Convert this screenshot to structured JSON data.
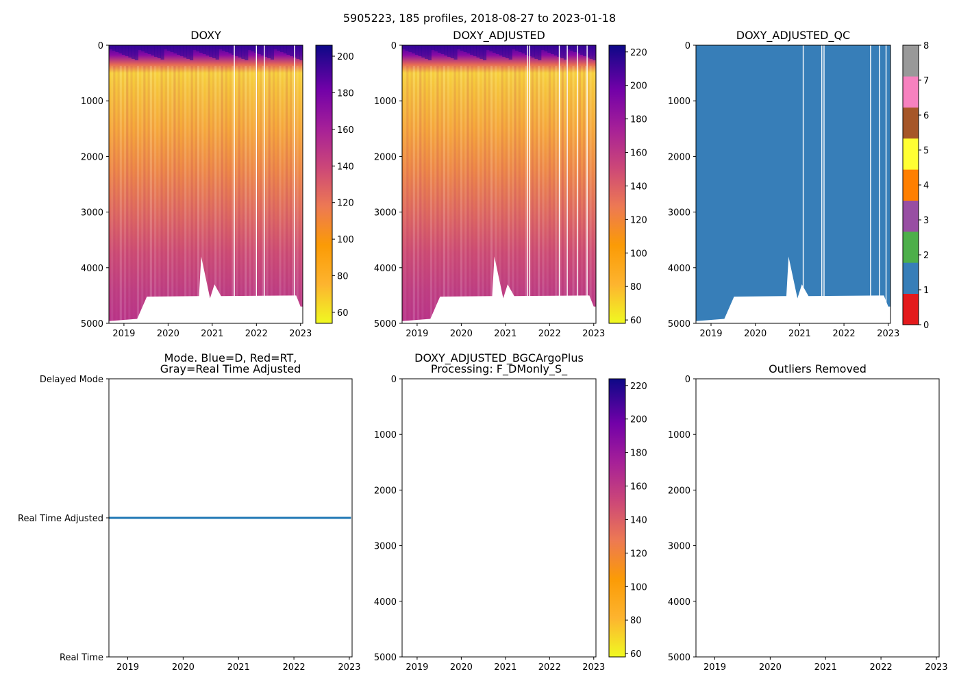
{
  "suptitle": "5905223, 185 profiles, 2018-08-27 to 2023-01-18",
  "chart_data": [
    {
      "type": "heatmap",
      "title": "DOXY",
      "x_range": [
        2018.66,
        2023.05
      ],
      "y_range": [
        0,
        5000
      ],
      "y_inverted": true,
      "xticks": [
        "2019",
        "2020",
        "2021",
        "2022",
        "2023"
      ],
      "yticks": [
        "0",
        "1000",
        "2000",
        "3000",
        "4000",
        "5000"
      ],
      "colormap": "plasma_r",
      "colorbar": {
        "range": [
          54,
          206
        ],
        "ticks": [
          "60",
          "80",
          "100",
          "120",
          "140",
          "160",
          "180",
          "200"
        ]
      },
      "profile_gaps": [
        2021.5,
        2022.0,
        2022.18,
        2022.86
      ],
      "bottom_depth_profile": [
        [
          2018.66,
          4960
        ],
        [
          2019.3,
          4920
        ],
        [
          2019.52,
          4520
        ],
        [
          2020.7,
          4510
        ],
        [
          2020.75,
          3800
        ],
        [
          2020.95,
          4550
        ],
        [
          2021.05,
          4300
        ],
        [
          2021.2,
          4510
        ],
        [
          2022.9,
          4500
        ],
        [
          2023.0,
          4700
        ]
      ]
    },
    {
      "type": "heatmap",
      "title": "DOXY_ADJUSTED",
      "x_range": [
        2018.66,
        2023.05
      ],
      "y_range": [
        0,
        5000
      ],
      "y_inverted": true,
      "xticks": [
        "2019",
        "2020",
        "2021",
        "2022",
        "2023"
      ],
      "yticks": [
        "0",
        "1000",
        "2000",
        "3000",
        "4000",
        "5000"
      ],
      "colormap": "plasma_r",
      "colorbar": {
        "range": [
          58,
          224
        ],
        "ticks": [
          "60",
          "80",
          "100",
          "120",
          "140",
          "160",
          "180",
          "200",
          "220"
        ]
      },
      "profile_gaps": [
        2021.5,
        2021.55,
        2022.22,
        2022.4,
        2022.63,
        2022.85
      ],
      "bottom_depth_profile": [
        [
          2018.66,
          4960
        ],
        [
          2019.3,
          4920
        ],
        [
          2019.52,
          4520
        ],
        [
          2020.7,
          4510
        ],
        [
          2020.75,
          3800
        ],
        [
          2020.95,
          4550
        ],
        [
          2021.05,
          4300
        ],
        [
          2021.2,
          4510
        ],
        [
          2022.9,
          4500
        ],
        [
          2023.0,
          4700
        ]
      ]
    },
    {
      "type": "heatmap",
      "title": "DOXY_ADJUSTED_QC",
      "x_range": [
        2018.66,
        2023.05
      ],
      "y_range": [
        0,
        5000
      ],
      "y_inverted": true,
      "xticks": [
        "2019",
        "2020",
        "2021",
        "2022",
        "2023"
      ],
      "yticks": [
        "0",
        "1000",
        "2000",
        "3000",
        "4000",
        "5000"
      ],
      "qc_value": 1,
      "qc_color": "#377eb8",
      "colorbar": {
        "range": [
          0,
          8
        ],
        "ticks": [
          "0",
          "1",
          "2",
          "3",
          "4",
          "5",
          "6",
          "7",
          "8"
        ],
        "colors": [
          "#e41a1c",
          "#377eb8",
          "#4daf4a",
          "#984ea3",
          "#ff7f00",
          "#ffff33",
          "#a65628",
          "#f781bf",
          "#999999"
        ]
      },
      "profile_gaps": [
        2021.08,
        2021.5,
        2021.55,
        2022.6,
        2022.8,
        2022.95
      ],
      "bottom_depth_profile": [
        [
          2018.66,
          4960
        ],
        [
          2019.3,
          4920
        ],
        [
          2019.52,
          4520
        ],
        [
          2020.7,
          4510
        ],
        [
          2020.75,
          3800
        ],
        [
          2020.95,
          4550
        ],
        [
          2021.05,
          4300
        ],
        [
          2021.2,
          4510
        ],
        [
          2022.9,
          4500
        ],
        [
          2023.0,
          4700
        ]
      ]
    },
    {
      "type": "scatter",
      "title": "Mode. Blue=D, Red=RT,\nGray=Real Time Adjusted",
      "x_range": [
        2018.66,
        2023.05
      ],
      "xticks": [
        "2019",
        "2020",
        "2021",
        "2022",
        "2023"
      ],
      "yticks": [
        "Delayed Mode",
        "Real Time Adjusted",
        "Real Time"
      ],
      "series": [
        {
          "name": "Real Time Adjusted",
          "y": "Real Time Adjusted",
          "x_range": [
            2018.66,
            2023.03
          ],
          "color": "#1f77b4"
        }
      ]
    },
    {
      "type": "heatmap",
      "title": "DOXY_ADJUSTED_BGCArgoPlus\nProcessing: F_DMonly_S_",
      "x_range": [
        2018.66,
        2023.05
      ],
      "y_range": [
        0,
        5000
      ],
      "y_inverted": true,
      "xticks": [
        "2019",
        "2020",
        "2021",
        "2022",
        "2023"
      ],
      "yticks": [
        "0",
        "1000",
        "2000",
        "3000",
        "4000",
        "5000"
      ],
      "colormap": "plasma_r",
      "colorbar": {
        "range": [
          58,
          224
        ],
        "ticks": [
          "60",
          "80",
          "100",
          "120",
          "140",
          "160",
          "180",
          "200",
          "220"
        ]
      },
      "empty": true
    },
    {
      "type": "scatter",
      "title": "Outliers Removed",
      "x_range": [
        2018.66,
        2023.05
      ],
      "y_range": [
        0,
        5000
      ],
      "y_inverted": true,
      "xticks": [
        "2019",
        "2020",
        "2021",
        "2022",
        "2023"
      ],
      "yticks": [
        "0",
        "1000",
        "2000",
        "3000",
        "4000",
        "5000"
      ],
      "empty": true
    }
  ]
}
